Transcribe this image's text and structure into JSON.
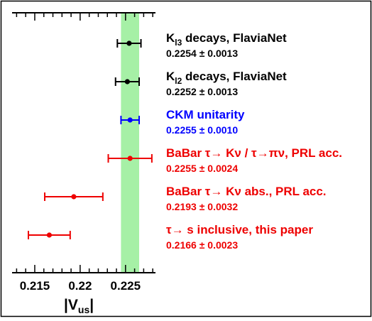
{
  "chart_data": {
    "type": "scatter",
    "orientation": "horizontal-error-bars",
    "xlabel_main": "|V",
    "xlabel_sub": "us",
    "xlabel_suffix": "|",
    "xlim": [
      0.2125,
      0.2283
    ],
    "xticks": [
      0.215,
      0.22,
      0.225
    ],
    "xtick_labels": [
      "0.215",
      "0.22",
      "0.225"
    ],
    "band": {
      "center": 0.2255,
      "halfwidth": 0.001,
      "color": "#a6f0a6"
    },
    "grid": false,
    "legend": "none",
    "series": [
      {
        "label_main": "K",
        "label_sub": "l3",
        "label_rest": " decays, FlaviaNet",
        "value_text": "0.2254 ± 0.0013",
        "x": 0.2254,
        "err": 0.0013,
        "color": "#000000"
      },
      {
        "label_main": "K",
        "label_sub": "l2",
        "label_rest": " decays, FlaviaNet",
        "value_text": "0.2252 ± 0.0013",
        "x": 0.2252,
        "err": 0.0013,
        "color": "#000000"
      },
      {
        "label_main": "CKM unitarity",
        "label_sub": "",
        "label_rest": "",
        "value_text": "0.2255 ± 0.0010",
        "x": 0.2255,
        "err": 0.001,
        "color": "#0000ff"
      },
      {
        "label_main": "BaBar τ→ Kν / τ→πν, PRL acc.",
        "label_sub": "",
        "label_rest": "",
        "value_text": "0.2255 ± 0.0024",
        "x": 0.2255,
        "err": 0.0024,
        "color": "#ee0000"
      },
      {
        "label_main": "BaBar τ→ Kν abs., PRL acc.",
        "label_sub": "",
        "label_rest": "",
        "value_text": "0.2193 ± 0.0032",
        "x": 0.2193,
        "err": 0.0032,
        "color": "#ee0000"
      },
      {
        "label_main": "τ→ s inclusive, this paper",
        "label_sub": "",
        "label_rest": "",
        "value_text": "0.2166 ± 0.0023",
        "x": 0.2166,
        "err": 0.0023,
        "color": "#ee0000"
      }
    ]
  }
}
